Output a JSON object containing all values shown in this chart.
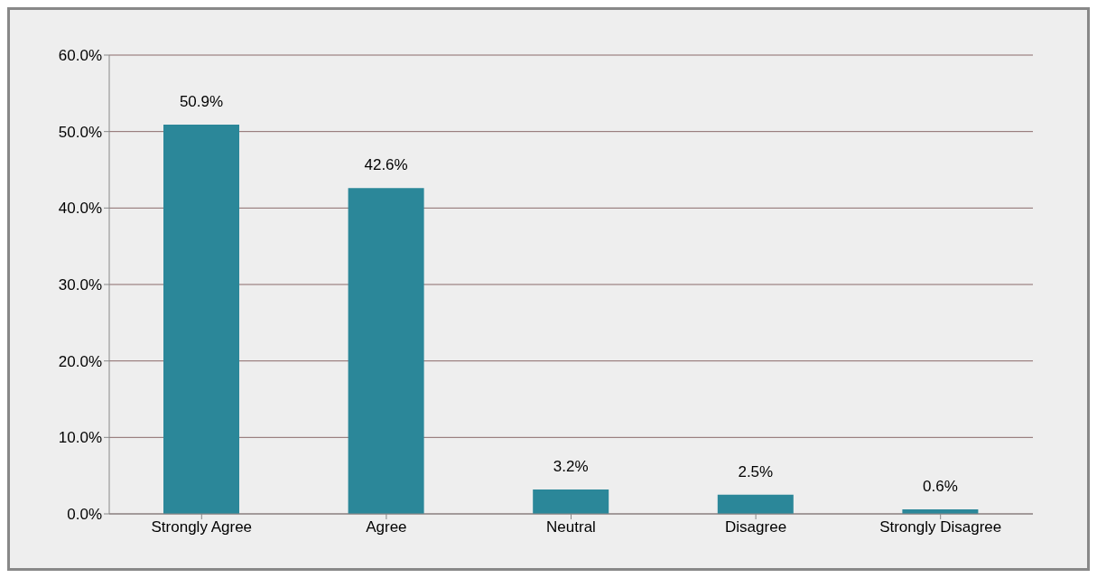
{
  "chart_data": {
    "type": "bar",
    "categories": [
      "Strongly Agree",
      "Agree",
      "Neutral",
      "Disagree",
      "Strongly Disagree"
    ],
    "values": [
      50.9,
      42.6,
      3.2,
      2.5,
      0.6
    ],
    "value_labels": [
      "50.9%",
      "42.6%",
      "3.2%",
      "2.5%",
      "0.6%"
    ],
    "color": "#2b8799",
    "ylim": [
      0,
      60
    ],
    "yticks": [
      {
        "value": 0,
        "label": "0.0%"
      },
      {
        "value": 10,
        "label": "10.0%"
      },
      {
        "value": 20,
        "label": "20.0%"
      },
      {
        "value": 30,
        "label": "30.0%"
      },
      {
        "value": 40,
        "label": "40.0%"
      },
      {
        "value": 50,
        "label": "50.0%"
      },
      {
        "value": 60,
        "label": "60.0%"
      }
    ],
    "grid": "y"
  }
}
